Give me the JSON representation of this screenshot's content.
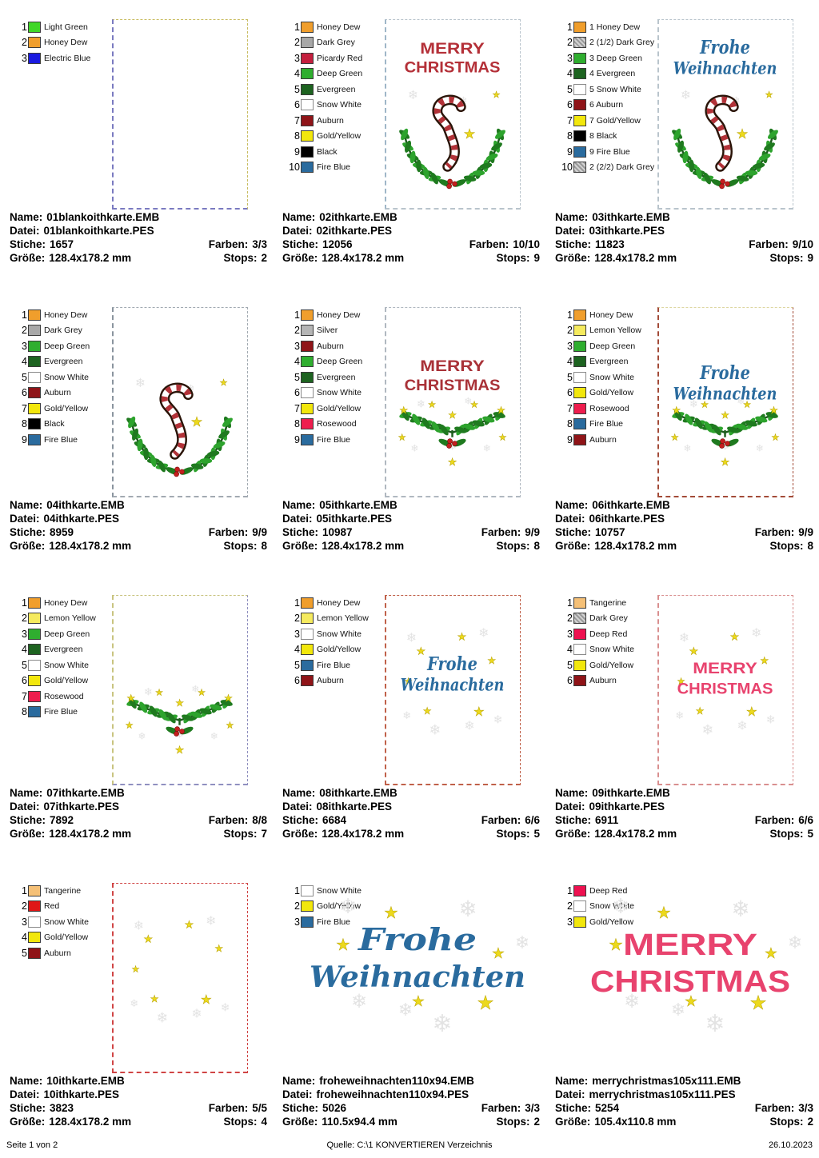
{
  "labels": {
    "name": "Name:",
    "file": "Datei:",
    "stitches": "Stiche:",
    "colors": "Farben:",
    "size": "Größe:",
    "stops": "Stops:"
  },
  "footer": {
    "page_label": "Seite 1 von 2",
    "source_label": "Quelle: C:\\1 KONVERTIEREN Verzeichnis",
    "date": "26.10.2023"
  },
  "cells": [
    {
      "colors": [
        {
          "n": "1",
          "label": "Light Green",
          "hex": "#3fd627"
        },
        {
          "n": "2",
          "label": "Honey Dew",
          "hex": "#f09e2c"
        },
        {
          "n": "3",
          "label": "Electric Blue",
          "hex": "#1a1ae0"
        }
      ],
      "meta": {
        "name": "01blankoithkarte.EMB",
        "file": "01blankoithkarte.PES",
        "stitches": "1657",
        "colors": "3/3",
        "size": "128.4x178.2 mm",
        "stops": "2"
      },
      "thumbnail": {
        "kind": "blank",
        "border": {
          "top": "#c9bd62",
          "right": "#c9bd62",
          "bottom": "#7a7ac0",
          "left": "#7a7ac0"
        }
      }
    },
    {
      "colors": [
        {
          "n": "1",
          "label": "Honey Dew",
          "hex": "#f09e2c"
        },
        {
          "n": "2",
          "label": "Dark Grey",
          "hex": "#a8a8a8"
        },
        {
          "n": "3",
          "label": "Picardy Red",
          "hex": "#c41f3e"
        },
        {
          "n": "4",
          "label": "Deep Green",
          "hex": "#2fae2f"
        },
        {
          "n": "5",
          "label": "Evergreen",
          "hex": "#1d6320"
        },
        {
          "n": "6",
          "label": "Snow White",
          "hex": "#ffffff"
        },
        {
          "n": "7",
          "label": "Auburn",
          "hex": "#8f1418"
        },
        {
          "n": "8",
          "label": "Gold/Yellow",
          "hex": "#f2e70c"
        },
        {
          "n": "9",
          "label": "Black",
          "hex": "#000000"
        },
        {
          "n": "10",
          "label": "Fire Blue",
          "hex": "#2a6b9e"
        }
      ],
      "meta": {
        "name": "02ithkarte.EMB",
        "file": "02ithkarte.PES",
        "stitches": "12056",
        "colors": "10/10",
        "size": "128.4x178.2 mm",
        "stops": "9"
      },
      "thumbnail": {
        "kind": "wreath",
        "title_lines": [
          "MERRY",
          "CHRISTMAS"
        ],
        "title_style": "block",
        "title_color": "#b43038",
        "border": {
          "top": "#b9c4cc",
          "right": "#b9c4cc",
          "bottom": "#b9c4cc",
          "left": "#9fb6c8"
        }
      }
    },
    {
      "colors": [
        {
          "n": "1",
          "label": "1 Honey Dew",
          "hex": "#f09e2c"
        },
        {
          "n": "2",
          "label": "2 (1/2) Dark Grey",
          "hex": "#a8a8a8",
          "hatch": true
        },
        {
          "n": "3",
          "label": "3 Deep Green",
          "hex": "#2fae2f"
        },
        {
          "n": "4",
          "label": "4 Evergreen",
          "hex": "#1d6320"
        },
        {
          "n": "5",
          "label": "5 Snow White",
          "hex": "#ffffff"
        },
        {
          "n": "6",
          "label": "6 Auburn",
          "hex": "#8f1418"
        },
        {
          "n": "7",
          "label": "7 Gold/Yellow",
          "hex": "#f2e70c"
        },
        {
          "n": "8",
          "label": "8 Black",
          "hex": "#000000"
        },
        {
          "n": "9",
          "label": "9 Fire Blue",
          "hex": "#2a6b9e"
        },
        {
          "n": "10",
          "label": "2 (2/2) Dark Grey",
          "hex": "#a8a8a8",
          "hatch": true
        }
      ],
      "meta": {
        "name": "03ithkarte.EMB",
        "file": "03ithkarte.PES",
        "stitches": "11823",
        "colors": "9/10",
        "size": "128.4x178.2 mm",
        "stops": "9"
      },
      "thumbnail": {
        "kind": "wreath",
        "title_lines": [
          "Frohe",
          "Weihnachten"
        ],
        "title_style": "script",
        "title_color": "#2a6b9e",
        "border": {
          "top": "#b9c4cc",
          "right": "#b9c4cc",
          "bottom": "#b9c4cc",
          "left": "#b9c4cc"
        }
      }
    },
    {
      "colors": [
        {
          "n": "1",
          "label": "Honey Dew",
          "hex": "#f09e2c"
        },
        {
          "n": "2",
          "label": "Dark Grey",
          "hex": "#a8a8a8"
        },
        {
          "n": "3",
          "label": "Deep Green",
          "hex": "#2fae2f"
        },
        {
          "n": "4",
          "label": "Evergreen",
          "hex": "#1d6320"
        },
        {
          "n": "5",
          "label": "Snow White",
          "hex": "#ffffff"
        },
        {
          "n": "6",
          "label": "Auburn",
          "hex": "#8f1418"
        },
        {
          "n": "7",
          "label": "Gold/Yellow",
          "hex": "#f2e70c"
        },
        {
          "n": "8",
          "label": "Black",
          "hex": "#000000"
        },
        {
          "n": "9",
          "label": "Fire Blue",
          "hex": "#2a6b9e"
        }
      ],
      "meta": {
        "name": "04ithkarte.EMB",
        "file": "04ithkarte.PES",
        "stitches": "8959",
        "colors": "9/9",
        "size": "128.4x178.2 mm",
        "stops": "8"
      },
      "thumbnail": {
        "kind": "wreath",
        "title_lines": [],
        "title_style": "none",
        "title_color": "",
        "border": {
          "top": "#a2aab2",
          "right": "#a2aab2",
          "bottom": "#a2aab2",
          "left": "#8a949e"
        }
      }
    },
    {
      "colors": [
        {
          "n": "1",
          "label": "Honey Dew",
          "hex": "#f09e2c"
        },
        {
          "n": "2",
          "label": "Silver",
          "hex": "#b5b5b5"
        },
        {
          "n": "3",
          "label": "Auburn",
          "hex": "#8f1418"
        },
        {
          "n": "4",
          "label": "Deep Green",
          "hex": "#2fae2f"
        },
        {
          "n": "5",
          "label": "Evergreen",
          "hex": "#1d6320"
        },
        {
          "n": "6",
          "label": "Snow White",
          "hex": "#ffffff"
        },
        {
          "n": "7",
          "label": "Gold/Yellow",
          "hex": "#f2e70c"
        },
        {
          "n": "8",
          "label": "Rosewood",
          "hex": "#ee1d4e"
        },
        {
          "n": "9",
          "label": "Fire Blue",
          "hex": "#2a6b9e"
        }
      ],
      "meta": {
        "name": "05ithkarte.EMB",
        "file": "05ithkarte.PES",
        "stitches": "10987",
        "colors": "9/9",
        "size": "128.4x178.2 mm",
        "stops": "8"
      },
      "thumbnail": {
        "kind": "branch",
        "title_lines": [
          "MERRY",
          "CHRISTMAS"
        ],
        "title_style": "block",
        "title_color": "#a93238",
        "border": {
          "top": "#b0b8c0",
          "right": "#b0b8c0",
          "bottom": "#b0b8c0",
          "left": "#b0b8c0"
        }
      }
    },
    {
      "colors": [
        {
          "n": "1",
          "label": "Honey Dew",
          "hex": "#f09e2c"
        },
        {
          "n": "2",
          "label": "Lemon Yellow",
          "hex": "#f5ea5e"
        },
        {
          "n": "3",
          "label": "Deep Green",
          "hex": "#2fae2f"
        },
        {
          "n": "4",
          "label": "Evergreen",
          "hex": "#1d6320"
        },
        {
          "n": "5",
          "label": "Snow White",
          "hex": "#ffffff"
        },
        {
          "n": "6",
          "label": "Gold/Yellow",
          "hex": "#f2e70c"
        },
        {
          "n": "7",
          "label": "Rosewood",
          "hex": "#ee1d4e"
        },
        {
          "n": "8",
          "label": "Fire Blue",
          "hex": "#2a6b9e"
        },
        {
          "n": "9",
          "label": "Auburn",
          "hex": "#8f1418"
        }
      ],
      "meta": {
        "name": "06ithkarte.EMB",
        "file": "06ithkarte.PES",
        "stitches": "10757",
        "colors": "9/9",
        "size": "128.4x178.2 mm",
        "stops": "8"
      },
      "thumbnail": {
        "kind": "branch",
        "title_lines": [
          "Frohe",
          "Weihnachten"
        ],
        "title_style": "script",
        "title_color": "#2a6b9e",
        "border": {
          "top": "#ddd6a0",
          "right": "#a34b38",
          "bottom": "#a34b38",
          "left": "#a34b38"
        }
      }
    },
    {
      "colors": [
        {
          "n": "1",
          "label": "Honey Dew",
          "hex": "#f09e2c"
        },
        {
          "n": "2",
          "label": "Lemon Yellow",
          "hex": "#f5ea5e"
        },
        {
          "n": "3",
          "label": "Deep Green",
          "hex": "#2fae2f"
        },
        {
          "n": "4",
          "label": "Evergreen",
          "hex": "#1d6320"
        },
        {
          "n": "5",
          "label": "Snow White",
          "hex": "#ffffff"
        },
        {
          "n": "6",
          "label": "Gold/Yellow",
          "hex": "#f2e70c"
        },
        {
          "n": "7",
          "label": "Rosewood",
          "hex": "#ee1d4e"
        },
        {
          "n": "8",
          "label": "Fire Blue",
          "hex": "#2a6b9e"
        }
      ],
      "meta": {
        "name": "07ithkarte.EMB",
        "file": "07ithkarte.PES",
        "stitches": "7892",
        "colors": "8/8",
        "size": "128.4x178.2 mm",
        "stops": "7"
      },
      "thumbnail": {
        "kind": "branch",
        "title_lines": [],
        "title_style": "none",
        "title_color": "",
        "border": {
          "top": "#c9c480",
          "right": "#9090c0",
          "bottom": "#9090c0",
          "left": "#c9c480"
        }
      }
    },
    {
      "colors": [
        {
          "n": "1",
          "label": "Honey Dew",
          "hex": "#f09e2c"
        },
        {
          "n": "2",
          "label": "Lemon Yellow",
          "hex": "#f5ea5e"
        },
        {
          "n": "3",
          "label": "Snow White",
          "hex": "#ffffff"
        },
        {
          "n": "4",
          "label": "Gold/Yellow",
          "hex": "#f2e70c"
        },
        {
          "n": "5",
          "label": "Fire Blue",
          "hex": "#2a6b9e"
        },
        {
          "n": "6",
          "label": "Auburn",
          "hex": "#8f1418"
        }
      ],
      "meta": {
        "name": "08ithkarte.EMB",
        "file": "08ithkarte.PES",
        "stitches": "6684",
        "colors": "6/6",
        "size": "128.4x178.2 mm",
        "stops": "5"
      },
      "thumbnail": {
        "kind": "scatter",
        "title_lines": [
          "Frohe",
          "Weihnachten"
        ],
        "title_style": "script",
        "title_color": "#2a6b9e",
        "border": {
          "top": "#c0614a",
          "right": "#c0614a",
          "bottom": "#c0614a",
          "left": "#c0614a"
        }
      }
    },
    {
      "colors": [
        {
          "n": "1",
          "label": "Tangerine",
          "hex": "#f5c077"
        },
        {
          "n": "2",
          "label": "Dark Grey",
          "hex": "#a8a8a8",
          "hatch": true
        },
        {
          "n": "3",
          "label": "Deep Red",
          "hex": "#ee1150"
        },
        {
          "n": "4",
          "label": "Snow White",
          "hex": "#ffffff"
        },
        {
          "n": "5",
          "label": "Gold/Yellow",
          "hex": "#f2e70c"
        },
        {
          "n": "6",
          "label": "Auburn",
          "hex": "#8f1418"
        }
      ],
      "meta": {
        "name": "09ithkarte.EMB",
        "file": "09ithkarte.PES",
        "stitches": "6911",
        "colors": "6/6",
        "size": "128.4x178.2 mm",
        "stops": "5"
      },
      "thumbnail": {
        "kind": "scatter",
        "title_lines": [
          "MERRY",
          "CHRISTMAS"
        ],
        "title_style": "block",
        "title_color": "#e8436e",
        "border": {
          "top": "#d98f8f",
          "right": "#d98f8f",
          "bottom": "#d98f8f",
          "left": "#d98f8f"
        }
      }
    },
    {
      "colors": [
        {
          "n": "1",
          "label": "Tangerine",
          "hex": "#f5c077"
        },
        {
          "n": "2",
          "label": "Red",
          "hex": "#e01616"
        },
        {
          "n": "3",
          "label": "Snow White",
          "hex": "#ffffff"
        },
        {
          "n": "4",
          "label": "Gold/Yellow",
          "hex": "#f2e70c"
        },
        {
          "n": "5",
          "label": "Auburn",
          "hex": "#8f1418"
        }
      ],
      "meta": {
        "name": "10ithkarte.EMB",
        "file": "10ithkarte.PES",
        "stitches": "3823",
        "colors": "5/5",
        "size": "128.4x178.2 mm",
        "stops": "4"
      },
      "thumbnail": {
        "kind": "scatter",
        "title_lines": [],
        "title_style": "none",
        "title_color": "",
        "border": {
          "top": "#d04545",
          "right": "#d04545",
          "bottom": "#d04545",
          "left": "#d04545"
        }
      }
    },
    {
      "colors": [
        {
          "n": "1",
          "label": "Snow White",
          "hex": "#ffffff"
        },
        {
          "n": "2",
          "label": "Gold/Yellow",
          "hex": "#f2e70c"
        },
        {
          "n": "3",
          "label": "Fire Blue",
          "hex": "#2a6b9e"
        }
      ],
      "meta": {
        "name": "froheweihnachten110x94.EMB",
        "file": "froheweihnachten110x94.PES",
        "stitches": "5026",
        "colors": "3/3",
        "size": "110.5x94.4 mm",
        "stops": "2"
      },
      "thumbnail": {
        "kind": "scatter-large",
        "title_lines": [
          "Frohe",
          "Weihnachten"
        ],
        "title_style": "script",
        "title_color": "#2a6b9e",
        "border": null
      }
    },
    {
      "colors": [
        {
          "n": "1",
          "label": "Deep Red",
          "hex": "#ee1150"
        },
        {
          "n": "2",
          "label": "Snow White",
          "hex": "#ffffff"
        },
        {
          "n": "3",
          "label": "Gold/Yellow",
          "hex": "#f2e70c"
        }
      ],
      "meta": {
        "name": "merrychristmas105x111.EMB",
        "file": "merrychristmas105x111.PES",
        "stitches": "5254",
        "colors": "3/3",
        "size": "105.4x110.8 mm",
        "stops": "2"
      },
      "thumbnail": {
        "kind": "scatter-large",
        "title_lines": [
          "MERRY",
          "CHRISTMAS"
        ],
        "title_style": "block",
        "title_color": "#e8436e",
        "border": null
      }
    }
  ]
}
